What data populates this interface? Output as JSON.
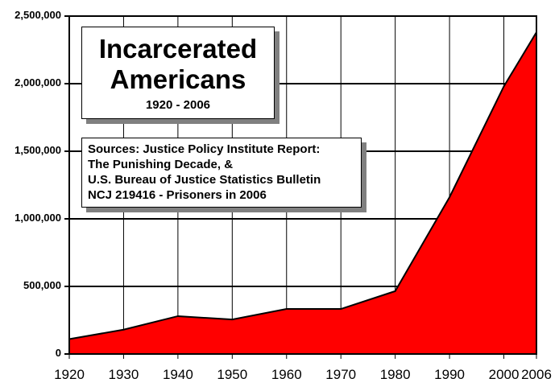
{
  "chart_data": {
    "type": "area",
    "title": "Incarcerated Americans",
    "subtitle": "1920 - 2006",
    "annotation": [
      "Sources: Justice Policy Institute Report:",
      "The Punishing Decade, &",
      "U.S. Bureau of Justice Statistics Bulletin",
      "NCJ 219416 - Prisoners in 2006"
    ],
    "categories": [
      "1920",
      "1930",
      "1940",
      "1950",
      "1960",
      "1970",
      "1980",
      "1990",
      "2000",
      "2006"
    ],
    "values": [
      110000,
      180000,
      280000,
      255000,
      333000,
      333000,
      465000,
      1160000,
      1980000,
      2380000
    ],
    "xlabel": "",
    "ylabel": "",
    "ylim": [
      0,
      2500000
    ],
    "yticks": [
      "0",
      "500,000",
      "1,000,000",
      "1,500,000",
      "2,000,000",
      "2,500,000"
    ],
    "grid": true,
    "legend": "none",
    "fill_color": "#ff0000"
  }
}
